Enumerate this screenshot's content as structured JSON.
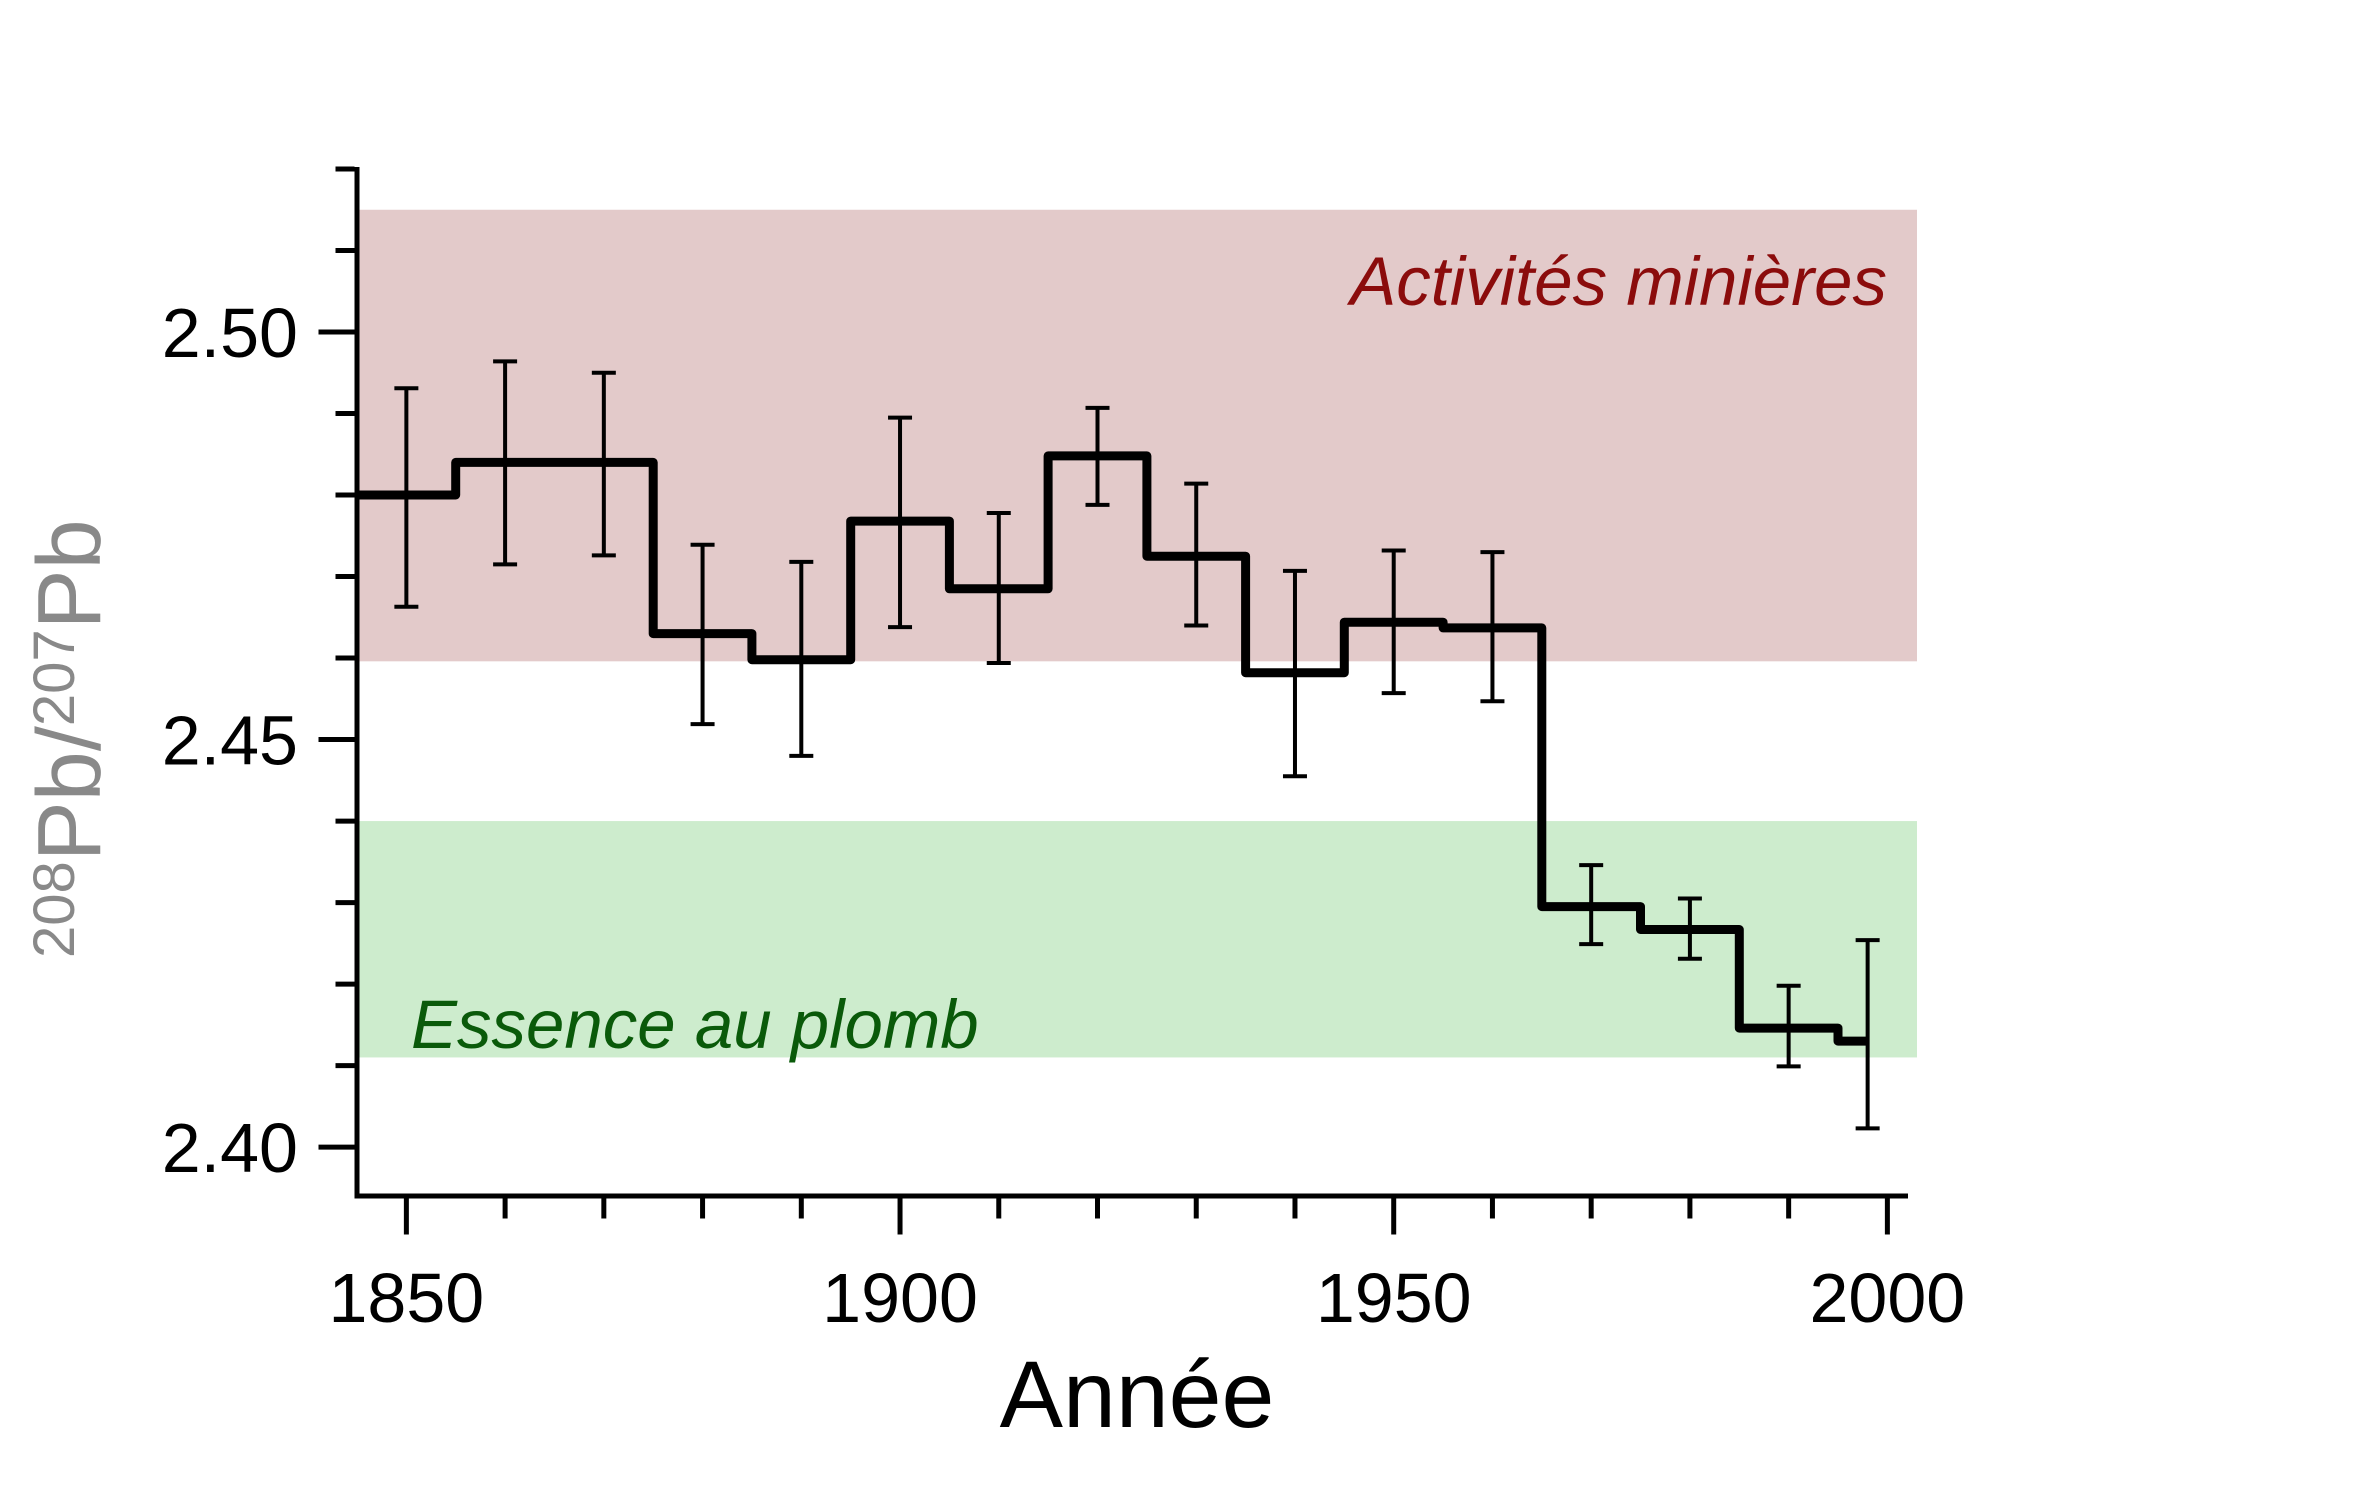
{
  "chart_data": {
    "type": "line",
    "line_style": "step",
    "title": "",
    "xlabel": "Année",
    "ylabel": "208Pb/207Pb",
    "ylabel_parts": [
      {
        "text": "208",
        "superscript": true
      },
      {
        "text": "Pb/",
        "superscript": false
      },
      {
        "text": "207",
        "superscript": true
      },
      {
        "text": "Pb",
        "superscript": false
      }
    ],
    "ylabel_color": "#898989",
    "xlim": [
      1845,
      2003
    ],
    "ylim": [
      2.394,
      2.52
    ],
    "grid": false,
    "x_major_ticks": [
      1850,
      1900,
      1950,
      2000
    ],
    "x_major_labels": [
      "1850",
      "1900",
      "1950",
      "2000"
    ],
    "x_minor_step": 10,
    "y_major_ticks": [
      2.4,
      2.45,
      2.5
    ],
    "y_major_labels": [
      "2.40",
      "2.45",
      "2.50"
    ],
    "y_minor_step": 0.01,
    "y_tick_range": [
      2.4,
      2.52
    ],
    "series": [
      {
        "name": "step-record",
        "color": "#000000",
        "segments": [
          {
            "x0": 1845,
            "x1": 1855,
            "y": 2.48
          },
          {
            "x0": 1855,
            "x1": 1875,
            "y": 2.484
          },
          {
            "x0": 1875,
            "x1": 1885,
            "y": 2.463
          },
          {
            "x0": 1885,
            "x1": 1895,
            "y": 2.4598
          },
          {
            "x0": 1895,
            "x1": 1905,
            "y": 2.4768
          },
          {
            "x0": 1905,
            "x1": 1915,
            "y": 2.4685
          },
          {
            "x0": 1915,
            "x1": 1925,
            "y": 2.4848
          },
          {
            "x0": 1925,
            "x1": 1935,
            "y": 2.4725
          },
          {
            "x0": 1935,
            "x1": 1945,
            "y": 2.4582
          },
          {
            "x0": 1945,
            "x1": 1955,
            "y": 2.4644
          },
          {
            "x0": 1955,
            "x1": 1965,
            "y": 2.4637
          },
          {
            "x0": 1965,
            "x1": 1975,
            "y": 2.4295
          },
          {
            "x0": 1975,
            "x1": 1985,
            "y": 2.4267
          },
          {
            "x0": 1985,
            "x1": 1995,
            "y": 2.4146
          },
          {
            "x0": 1995,
            "x1": 1998,
            "y": 2.413
          }
        ]
      }
    ],
    "error_bars": [
      {
        "x": 1850,
        "y": 2.48,
        "plus": 0.0131,
        "minus": 0.0137
      },
      {
        "x": 1860,
        "y": 2.484,
        "plus": 0.0124,
        "minus": 0.0125
      },
      {
        "x": 1870,
        "y": 2.484,
        "plus": 0.011,
        "minus": 0.0114
      },
      {
        "x": 1880,
        "y": 2.463,
        "plus": 0.0109,
        "minus": 0.0111
      },
      {
        "x": 1890,
        "y": 2.4598,
        "plus": 0.012,
        "minus": 0.0118
      },
      {
        "x": 1900,
        "y": 2.4768,
        "plus": 0.0127,
        "minus": 0.013
      },
      {
        "x": 1910,
        "y": 2.4685,
        "plus": 0.0093,
        "minus": 0.0091
      },
      {
        "x": 1920,
        "y": 2.4848,
        "plus": 0.0059,
        "minus": 0.006
      },
      {
        "x": 1930,
        "y": 2.4725,
        "plus": 0.0089,
        "minus": 0.0085
      },
      {
        "x": 1940,
        "y": 2.4582,
        "plus": 0.0125,
        "minus": 0.0127
      },
      {
        "x": 1950,
        "y": 2.4644,
        "plus": 0.0088,
        "minus": 0.0087
      },
      {
        "x": 1960,
        "y": 2.4637,
        "plus": 0.0093,
        "minus": 0.009
      },
      {
        "x": 1970,
        "y": 2.4295,
        "plus": 0.0051,
        "minus": 0.0046
      },
      {
        "x": 1980,
        "y": 2.4267,
        "plus": 0.0038,
        "minus": 0.0036
      },
      {
        "x": 1990,
        "y": 2.4146,
        "plus": 0.0052,
        "minus": 0.0047
      },
      {
        "x": 1998,
        "y": 2.413,
        "plus": 0.0124,
        "minus": 0.0107
      }
    ],
    "bands": [
      {
        "id": "mining",
        "y0": 2.4596,
        "y1": 2.515,
        "fill": "#e3caca",
        "label": "Activités minières",
        "label_color": "#8b0c0c"
      },
      {
        "id": "leaded-gasoline",
        "y0": 2.411,
        "y1": 2.44,
        "fill": "#cdeccd",
        "label": "Essence au plomb",
        "label_color": "#0a5a0a"
      }
    ],
    "colors": {
      "line": "#000000",
      "axis": "#000000",
      "background": "#ffffff",
      "ylabel_gray": "#898989"
    }
  }
}
